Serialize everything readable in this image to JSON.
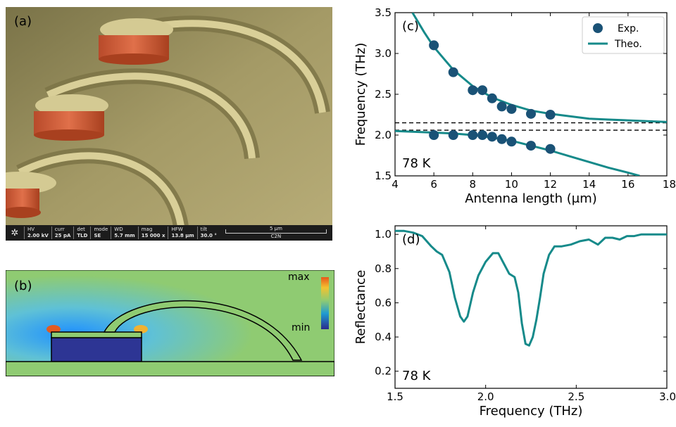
{
  "figure": {
    "panel_a": {
      "label": "(a)",
      "scalebar_text": "5 μm",
      "info_bar": [
        {
          "head": "HV",
          "val": "2.00 kV"
        },
        {
          "head": "curr",
          "val": "25 pA"
        },
        {
          "head": "det",
          "val": "TLD"
        },
        {
          "head": "mode",
          "val": "SE"
        },
        {
          "head": "WD",
          "val": "5.7 mm"
        },
        {
          "head": "mag",
          "val": "15 000 x"
        },
        {
          "head": "HFW",
          "val": "13.8 μm"
        },
        {
          "head": "tilt",
          "val": "30.0 °"
        }
      ],
      "lab": "C2N"
    },
    "panel_b": {
      "label": "(b)",
      "colorbar_max": "max",
      "colorbar_min": "min"
    }
  },
  "chart_data": [
    {
      "panel": "(c)",
      "type": "scatter",
      "annotation": "78 K",
      "xlabel": "Antenna length (μm)",
      "ylabel": "Frequency (THz)",
      "xlim": [
        4,
        18
      ],
      "ylim": [
        1.5,
        3.5
      ],
      "xticks": [
        4,
        6,
        8,
        10,
        12,
        14,
        16,
        18
      ],
      "yticks": [
        1.5,
        2.0,
        2.5,
        3.0,
        3.5
      ],
      "legend": {
        "placement": "top-right",
        "entries": [
          "Exp.",
          "Theo."
        ]
      },
      "series": [
        {
          "name": "Exp.",
          "kind": "points",
          "x": [
            6,
            7,
            8,
            8.5,
            9,
            9.5,
            10,
            11,
            12
          ],
          "y": [
            3.1,
            2.77,
            2.55,
            2.55,
            2.45,
            2.35,
            2.32,
            2.26,
            2.25
          ]
        },
        {
          "name": "Exp.",
          "kind": "points",
          "x": [
            6,
            7,
            8,
            8.5,
            9,
            9.5,
            10,
            11,
            12
          ],
          "y": [
            2.0,
            2.0,
            2.0,
            2.0,
            1.98,
            1.95,
            1.92,
            1.87,
            1.83
          ]
        },
        {
          "name": "Theo.",
          "kind": "line",
          "x": [
            4.9,
            5.5,
            6,
            7,
            8,
            9,
            10,
            11,
            12,
            13,
            14,
            15,
            16,
            17,
            18
          ],
          "y": [
            3.5,
            3.26,
            3.08,
            2.8,
            2.6,
            2.46,
            2.37,
            2.3,
            2.26,
            2.23,
            2.2,
            2.19,
            2.18,
            2.17,
            2.16
          ]
        },
        {
          "name": "Theo.",
          "kind": "line",
          "x": [
            4,
            5,
            6,
            7,
            8,
            9,
            10,
            11,
            12,
            13,
            14,
            15,
            16,
            16.6
          ],
          "y": [
            2.05,
            2.04,
            2.03,
            2.02,
            2.0,
            1.97,
            1.93,
            1.87,
            1.81,
            1.74,
            1.67,
            1.6,
            1.54,
            1.5
          ]
        }
      ],
      "reference_lines": [
        2.15,
        2.06
      ],
      "colors": {
        "points": "#1a5276",
        "line": "#168a8a",
        "ref": "#000000"
      }
    },
    {
      "panel": "(d)",
      "type": "line",
      "annotation": "78 K",
      "xlabel": "Frequency (THz)",
      "ylabel": "Reflectance",
      "xlim": [
        1.5,
        3.0
      ],
      "ylim": [
        0.1,
        1.05
      ],
      "xticks": [
        1.5,
        2.0,
        2.5,
        3.0
      ],
      "yticks": [
        0.2,
        0.4,
        0.6,
        0.8,
        1.0
      ],
      "series": [
        {
          "kind": "line",
          "x": [
            1.5,
            1.55,
            1.6,
            1.65,
            1.7,
            1.73,
            1.76,
            1.8,
            1.83,
            1.86,
            1.88,
            1.9,
            1.93,
            1.96,
            2.0,
            2.04,
            2.07,
            2.1,
            2.13,
            2.16,
            2.18,
            2.2,
            2.22,
            2.24,
            2.26,
            2.28,
            2.3,
            2.32,
            2.35,
            2.38,
            2.42,
            2.47,
            2.52,
            2.57,
            2.62,
            2.66,
            2.7,
            2.74,
            2.78,
            2.82,
            2.86,
            2.9,
            2.95,
            3.0
          ],
          "y": [
            1.02,
            1.02,
            1.01,
            0.99,
            0.93,
            0.9,
            0.88,
            0.78,
            0.63,
            0.52,
            0.49,
            0.52,
            0.66,
            0.76,
            0.84,
            0.89,
            0.89,
            0.83,
            0.77,
            0.75,
            0.66,
            0.48,
            0.36,
            0.35,
            0.4,
            0.5,
            0.63,
            0.77,
            0.88,
            0.93,
            0.93,
            0.94,
            0.96,
            0.97,
            0.94,
            0.98,
            0.98,
            0.97,
            0.99,
            0.99,
            1.0,
            1.0,
            1.0,
            1.0
          ]
        }
      ],
      "colors": {
        "line": "#168a8a"
      }
    }
  ]
}
